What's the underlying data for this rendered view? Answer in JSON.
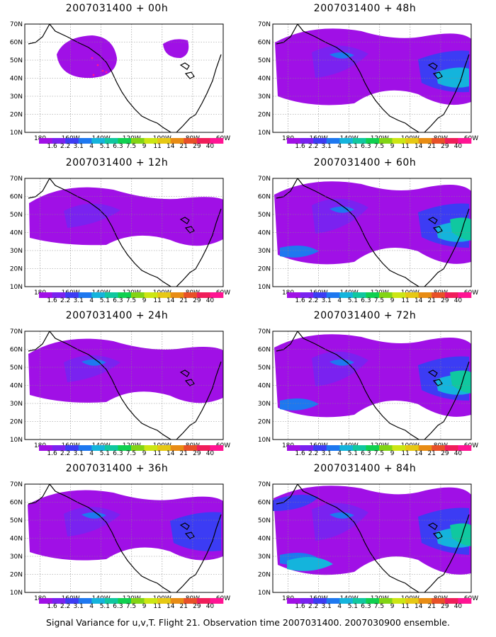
{
  "lat_labels": [
    "70N",
    "60N",
    "50N",
    "40N",
    "30N",
    "20N",
    "10N"
  ],
  "lon_labels": [
    "180",
    "160W",
    "140W",
    "120W",
    "100W",
    "80W",
    "60W"
  ],
  "colorbar": {
    "colors": [
      "#a010e6",
      "#7a22f0",
      "#3c3cf4",
      "#1e78f0",
      "#14b4dc",
      "#10c8a0",
      "#10d050",
      "#82d414",
      "#cce614",
      "#e6c814",
      "#e88c14",
      "#e85028",
      "#f01e5a",
      "#ff1493"
    ],
    "labels": [
      "1.6",
      "2.2",
      "3.1",
      "4",
      "5.1",
      "6.3",
      "7.5",
      "9",
      "11",
      "14",
      "21",
      "29",
      "40"
    ]
  },
  "panels": [
    {
      "title": "2007031400 + 00h",
      "level": 0
    },
    {
      "title": "2007031400 + 48h",
      "level": 4
    },
    {
      "title": "2007031400 + 12h",
      "level": 1
    },
    {
      "title": "2007031400 + 60h",
      "level": 5
    },
    {
      "title": "2007031400 + 24h",
      "level": 2
    },
    {
      "title": "2007031400 + 72h",
      "level": 5
    },
    {
      "title": "2007031400 + 36h",
      "level": 3
    },
    {
      "title": "2007031400 + 84h",
      "level": 6
    }
  ],
  "caption": "Signal Variance for u,v,T. Flight 21. Observation time 2007031400. 2007030900 ensemble."
}
